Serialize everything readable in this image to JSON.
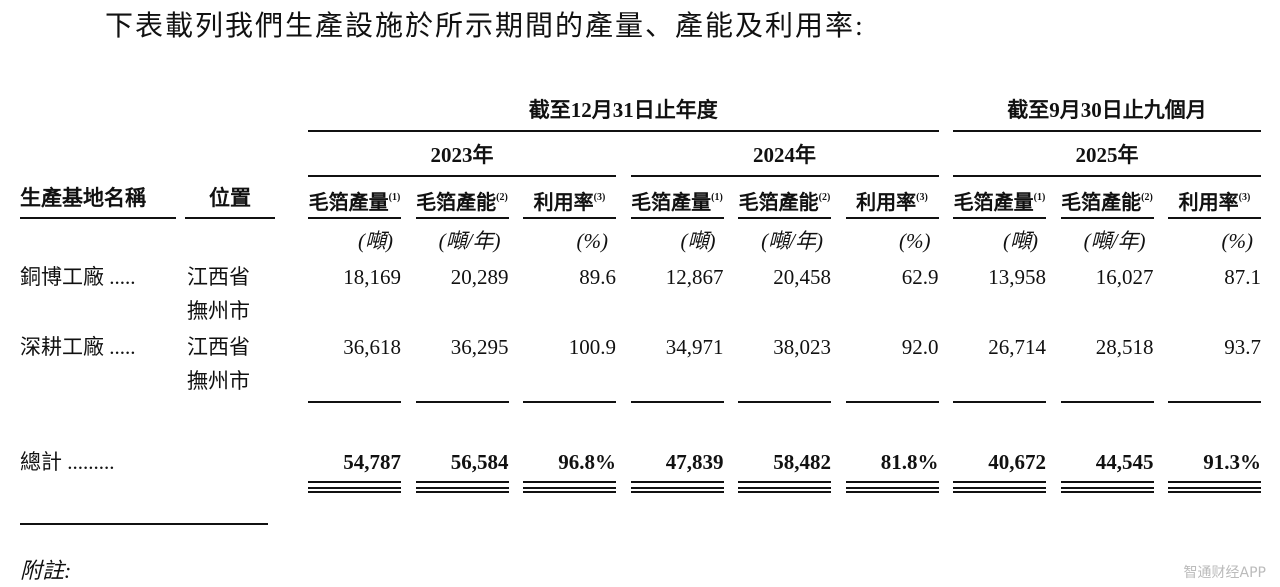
{
  "intro": "下表載列我們生產設施於所示期間的產量、產能及利用率:",
  "table": {
    "period_headers": [
      "截至12月31日止年度",
      "截至9月30日止九個月"
    ],
    "years": [
      "2023年",
      "2024年",
      "2025年"
    ],
    "name_header": "生產基地名稱",
    "location_header": "位置",
    "columns": [
      {
        "label": "毛箔產量",
        "note": "(1)",
        "unit": "(噸)"
      },
      {
        "label": "毛箔產能",
        "note": "(2)",
        "unit": "(噸/年)"
      },
      {
        "label": "利用率",
        "note": "(3)",
        "unit": "(%)"
      },
      {
        "label": "毛箔產量",
        "note": "(1)",
        "unit": "(噸)"
      },
      {
        "label": "毛箔產能",
        "note": "(2)",
        "unit": "(噸/年)"
      },
      {
        "label": "利用率",
        "note": "(3)",
        "unit": "(%)"
      },
      {
        "label": "毛箔產量",
        "note": "(1)",
        "unit": "(噸)"
      },
      {
        "label": "毛箔產能",
        "note": "(2)",
        "unit": "(噸/年)"
      },
      {
        "label": "利用率",
        "note": "(3)",
        "unit": "(%)"
      }
    ],
    "rows": [
      {
        "name": "銅博工廠 .....",
        "location": [
          "江西省",
          "撫州市"
        ],
        "values": [
          "18,169",
          "20,289",
          "89.6",
          "12,867",
          "20,458",
          "62.9",
          "13,958",
          "16,027",
          "87.1"
        ]
      },
      {
        "name": "深耕工廠 .....",
        "location": [
          "江西省",
          "撫州市"
        ],
        "values": [
          "36,618",
          "36,295",
          "100.9",
          "34,971",
          "38,023",
          "92.0",
          "26,714",
          "28,518",
          "93.7"
        ]
      }
    ],
    "total": {
      "label": "總計 .........",
      "values": [
        "54,787",
        "56,584",
        "96.8%",
        "47,839",
        "58,482",
        "81.8%",
        "40,672",
        "44,545",
        "91.3%"
      ]
    }
  },
  "footnote_heading": "附註:",
  "watermark": "智通财经APP"
}
